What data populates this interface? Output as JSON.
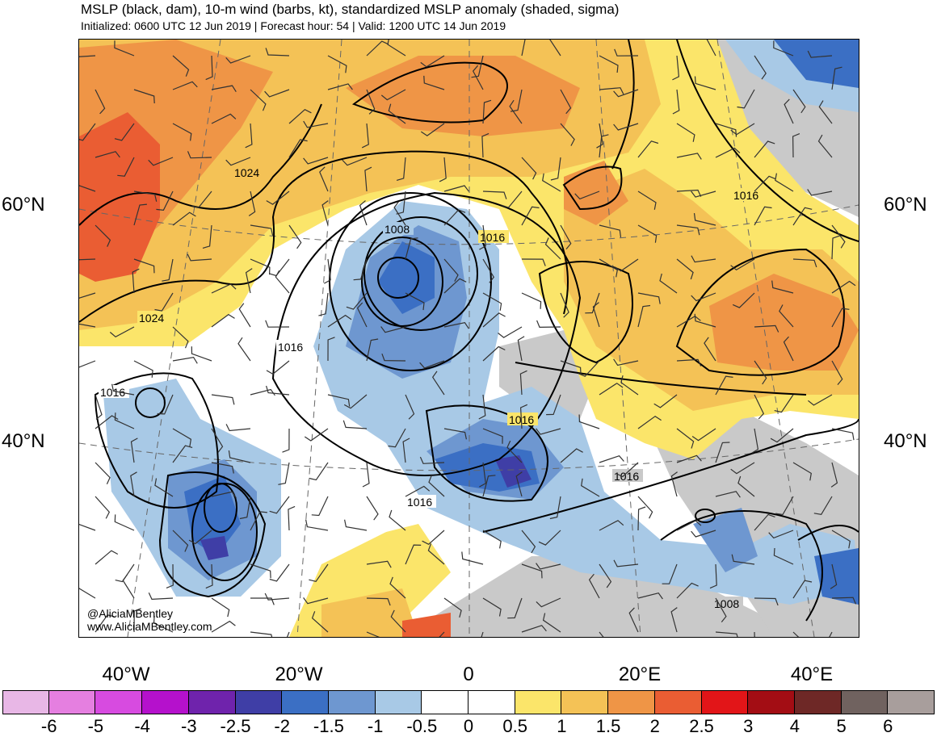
{
  "header": {
    "title": "MSLP (black, dam), 10-m wind (barbs, kt), standardized MSLP anomaly (shaded, sigma)",
    "subtitle": "Initialized: 0600 UTC 12 Jun 2019 | Forecast hour: 54 | Valid: 1200 UTC 14 Jun 2019"
  },
  "map": {
    "lat_labels": {
      "left_60": "60°N",
      "right_60": "60°N",
      "left_40": "40°N",
      "right_40": "40°N"
    },
    "lon_labels": [
      "40°W",
      "20°W",
      "0",
      "20°E",
      "40°E"
    ],
    "isobar_labels": [
      "1024",
      "1024",
      "1016",
      "1016",
      "1008",
      "1016",
      "1016",
      "1016",
      "1016",
      "1016",
      "1008"
    ],
    "credits": {
      "handle": "@AliciaMBentley",
      "website": "www.AliciaMBentley.com"
    }
  },
  "colorbar": {
    "ticks": [
      "-6",
      "-5",
      "-4",
      "-3",
      "-2.5",
      "-2",
      "-1.5",
      "-1",
      "-0.5",
      "0",
      "0.5",
      "1",
      "1.5",
      "2",
      "2.5",
      "3",
      "4",
      "5",
      "6"
    ],
    "colors": [
      "#e8b7e6",
      "#e57fe0",
      "#d74be0",
      "#b511cc",
      "#6f23ac",
      "#3f3ea6",
      "#3b6fc4",
      "#6e97d0",
      "#a8c9e6",
      "#ffffff",
      "#ffffff",
      "#fbe56a",
      "#f4c256",
      "#ef9546",
      "#ea5d33",
      "#e21518",
      "#a30d14",
      "#6e2826",
      "#70625f",
      "#a89e9c"
    ]
  }
}
